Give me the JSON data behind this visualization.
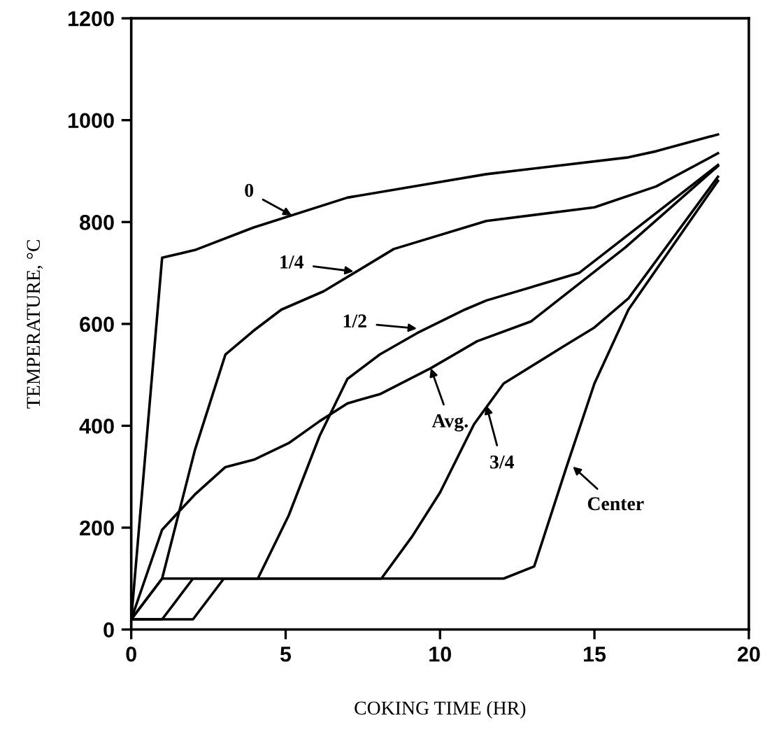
{
  "chart_data": {
    "type": "line",
    "xlabel": "COKING TIME (HR)",
    "ylabel": "TEMPERATURE, °C",
    "xlim": [
      0,
      20
    ],
    "ylim": [
      0,
      1200
    ],
    "xticks": [
      0,
      5,
      10,
      15,
      20
    ],
    "yticks": [
      0,
      200,
      400,
      600,
      800,
      1000,
      1200
    ],
    "grid": false,
    "marker": "none",
    "line_style": "solid",
    "series": [
      {
        "color": "#000000",
        "x": [
          0,
          1,
          2.06,
          3.95,
          7,
          11.5,
          16.1,
          17,
          19
        ],
        "values": [
          20,
          730,
          745,
          789,
          848,
          894,
          927,
          939,
          972
        ]
      },
      {
        "color": "#000000",
        "x": [
          0,
          1,
          2.06,
          3.05,
          3.95,
          4.86,
          6.23,
          8.5,
          11.5,
          15,
          17,
          19
        ],
        "values": [
          20,
          100,
          352,
          540,
          586,
          628,
          664,
          747,
          802,
          829,
          870,
          935
        ]
      },
      {
        "color": "#000000",
        "x": [
          0,
          1,
          4.1,
          5.1,
          6.1,
          7,
          8.05,
          9.26,
          10.8,
          11.5,
          14.5,
          15.5,
          19
        ],
        "values": [
          20,
          100,
          100,
          224,
          380,
          492,
          540,
          582,
          628,
          646,
          700,
          747,
          912
        ]
      },
      {
        "color": "#000000",
        "x": [
          0,
          1,
          2.06,
          3.05,
          4,
          5.1,
          6.1,
          7,
          8.05,
          9.7,
          11.2,
          12.95,
          16,
          19
        ],
        "values": [
          20,
          196,
          265,
          319,
          334,
          366,
          409,
          444,
          462,
          513,
          566,
          605,
          750,
          910
        ]
      },
      {
        "color": "#000000",
        "x": [
          0,
          1,
          2,
          8.1,
          9.1,
          10,
          11.1,
          12.06,
          13.95,
          15,
          16.1,
          19
        ],
        "values": [
          20,
          20,
          100,
          100,
          183,
          269,
          403,
          483,
          554,
          593,
          650,
          889
        ]
      },
      {
        "color": "#000000",
        "x": [
          0,
          2,
          3,
          12.06,
          13.05,
          14.1,
          15,
          16.1,
          19
        ],
        "values": [
          20,
          20,
          100,
          100,
          124,
          320,
          483,
          628,
          881
        ]
      }
    ],
    "annotations": [
      {
        "text": "0",
        "x": 5.2,
        "y": 813
      },
      {
        "text": "1/4",
        "x": 7.2,
        "y": 703
      },
      {
        "text": "1/2",
        "x": 9.25,
        "y": 591
      },
      {
        "text": "Avg.",
        "x": 9.7,
        "y": 513
      },
      {
        "text": "3/4",
        "x": 11.5,
        "y": 440
      },
      {
        "text": "Center",
        "x": 14.3,
        "y": 320
      }
    ]
  }
}
